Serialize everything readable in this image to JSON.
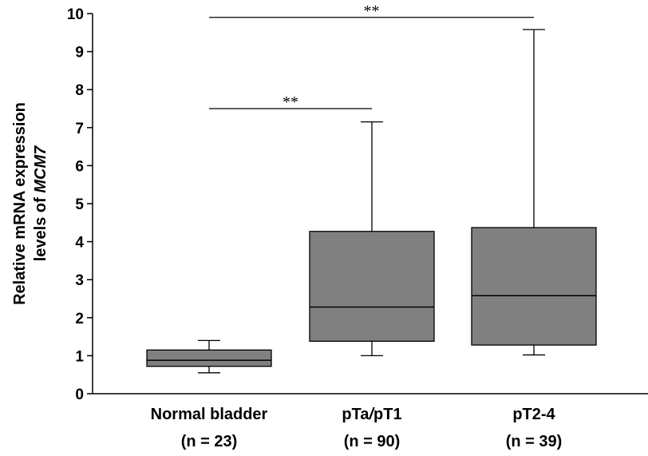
{
  "chart_data": {
    "type": "boxplot",
    "ylabel_line1": "Relative mRNA expression",
    "ylabel_line2_prefix": "levels of ",
    "ylabel_line2_gene": "MCM7",
    "ylim": [
      0,
      10
    ],
    "yticks": [
      "0",
      "1",
      "2",
      "3",
      "4",
      "5",
      "6",
      "7",
      "8",
      "9",
      "10"
    ],
    "grid": false,
    "box_color": "#808080",
    "categories": [
      {
        "name": "Normal bladder",
        "n_label": "(n = 23)"
      },
      {
        "name_parts": [
          "pTa",
          "/",
          "pT1"
        ],
        "n_label": "(n = 90)"
      },
      {
        "name": "pT2-4",
        "n_label": "(n = 39)"
      }
    ],
    "boxes": [
      {
        "whisker_low": 0.55,
        "q1": 0.72,
        "median": 0.88,
        "q3": 1.15,
        "whisker_high": 1.4
      },
      {
        "whisker_low": 1.0,
        "q1": 1.38,
        "median": 2.28,
        "q3": 4.27,
        "whisker_high": 7.15
      },
      {
        "whisker_low": 1.02,
        "q1": 1.28,
        "median": 2.58,
        "q3": 4.37,
        "whisker_high": 9.58
      }
    ],
    "significance": [
      {
        "from": 0,
        "to": 1,
        "y": 7.5,
        "label": "**"
      },
      {
        "from": 0,
        "to": 2,
        "y": 9.9,
        "label": "**"
      }
    ]
  }
}
